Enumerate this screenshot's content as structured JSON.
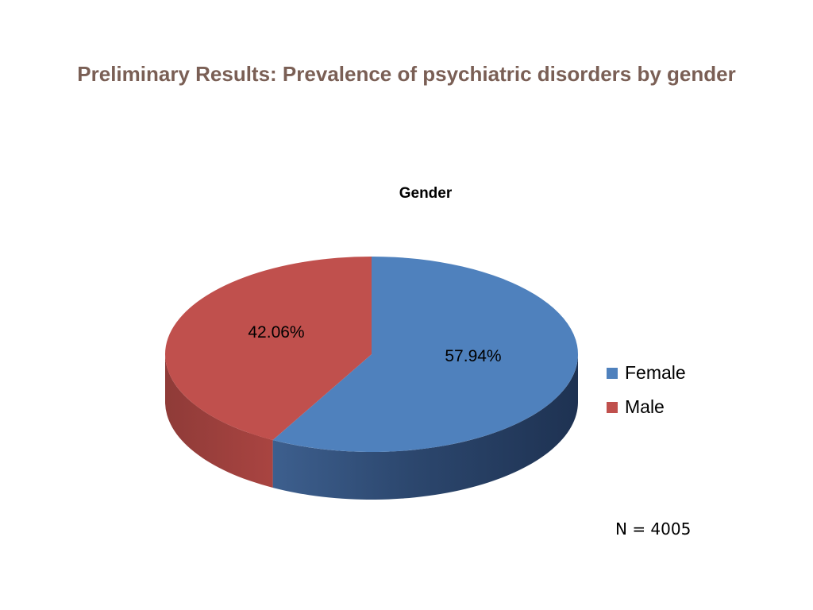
{
  "slide": {
    "title": "Preliminary Results: Prevalence of psychiatric disorders by gender",
    "note": "N = 4005"
  },
  "chart_data": {
    "type": "pie",
    "title": "Gender",
    "categories": [
      "Female",
      "Male"
    ],
    "values": [
      57.94,
      42.06
    ],
    "data_labels": [
      "57.94%",
      "42.06%"
    ],
    "colors": [
      "#4f81bd",
      "#c0504d"
    ],
    "legend_position": "right",
    "style": "3d"
  }
}
